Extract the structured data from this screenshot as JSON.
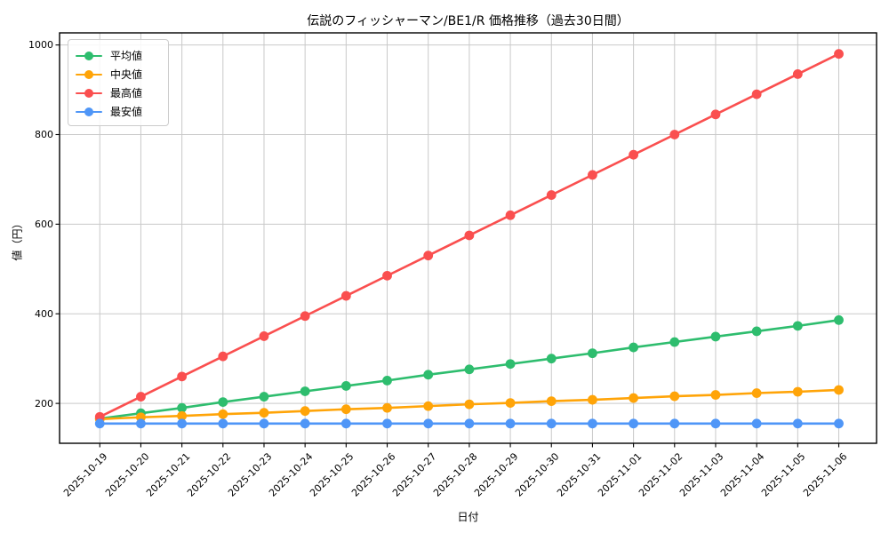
{
  "figure": {
    "title": "伝説のフィッシャーマン/BE1/R 価格推移（過去30日間）",
    "xlabel": "日付",
    "ylabel": "値（円）"
  },
  "chart_data": {
    "type": "line",
    "title": "伝説のフィッシャーマン/BE1/R 価格推移（過去30日間）",
    "xlabel": "日付",
    "ylabel": "値（円）",
    "categories": [
      "2025-10-19",
      "2025-10-20",
      "2025-10-21",
      "2025-10-22",
      "2025-10-23",
      "2025-10-24",
      "2025-10-25",
      "2025-10-26",
      "2025-10-27",
      "2025-10-28",
      "2025-10-29",
      "2025-10-30",
      "2025-10-31",
      "2025-11-01",
      "2025-11-02",
      "2025-11-03",
      "2025-11-04",
      "2025-11-05",
      "2025-11-06"
    ],
    "series": [
      {
        "name": "平均値",
        "color": "#2ebd6e",
        "values": [
          166,
          178,
          190,
          203,
          215,
          227,
          239,
          251,
          264,
          276,
          288,
          300,
          312,
          325,
          337,
          349,
          361,
          373,
          386
        ]
      },
      {
        "name": "中央値",
        "color": "#ffa408",
        "values": [
          165,
          169,
          172,
          176,
          179,
          183,
          187,
          190,
          194,
          198,
          201,
          205,
          208,
          212,
          216,
          219,
          223,
          226,
          230
        ]
      },
      {
        "name": "最高値",
        "color": "#fa4f4f",
        "values": [
          170,
          215,
          260,
          305,
          350,
          395,
          440,
          485,
          530,
          575,
          620,
          665,
          710,
          755,
          800,
          845,
          890,
          935,
          980
        ]
      },
      {
        "name": "最安値",
        "color": "#4f96f7",
        "values": [
          155,
          155,
          155,
          155,
          155,
          155,
          155,
          155,
          155,
          155,
          155,
          155,
          155,
          155,
          155,
          155,
          155,
          155,
          155
        ]
      }
    ],
    "yticks": [
      200,
      400,
      600,
      800,
      1000
    ],
    "ylim": [
      111,
      1027
    ],
    "xlim": [
      -0.98,
      18.92
    ],
    "grid": true,
    "grid_color": "#c9c9c9",
    "spine_color": "#000000",
    "background": "#ffffff",
    "legend_position": "upper left",
    "marker": "circle",
    "marker_radius": 5.4,
    "line_width": 2.6
  }
}
